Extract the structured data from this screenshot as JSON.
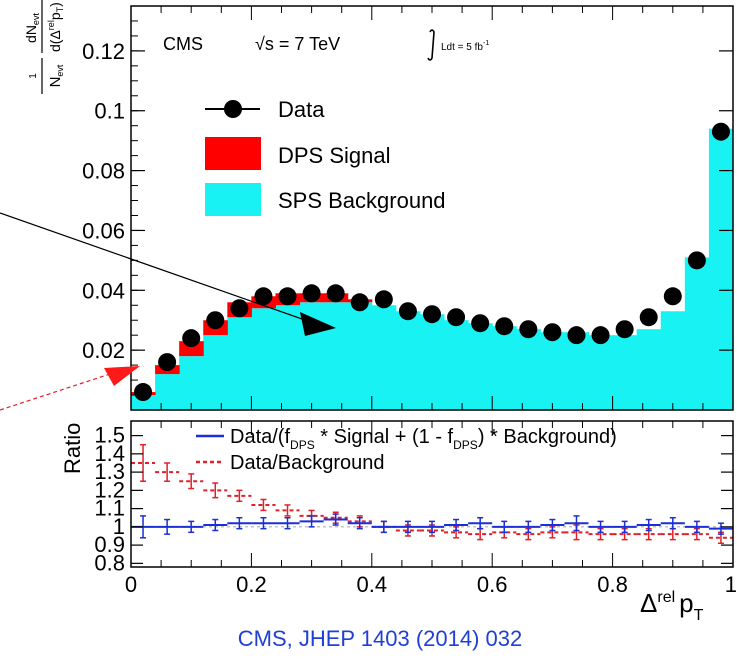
{
  "header": {
    "experiment": "CMS",
    "energy": "√s = 7 TeV",
    "lumi": "Ldt = 5 fb",
    "lumi_sup": "-1"
  },
  "citation": "CMS, JHEP 1403 (2014) 032",
  "colors": {
    "dps_signal": "#ff0000",
    "sps_background": "#19f2f2",
    "data": "#000000",
    "ratio_full": "#1a2fd6",
    "ratio_bkg": "#e0202a",
    "citation": "#1f3fd6"
  },
  "chart_data": [
    {
      "type": "bar",
      "ylabel_parts": {
        "num": "1",
        "den": "N",
        "den_sub": "evt",
        "dnum": "dN",
        "dnum_sub": "evt",
        "dden": "d(Δ",
        "dden_sup": "rel",
        "dden_p": "p",
        "dden_sub": "T",
        "close": ")"
      },
      "xlim": [
        0,
        1
      ],
      "ylim": [
        0,
        0.135
      ],
      "yticks": [
        0.02,
        0.04,
        0.06,
        0.08,
        0.1,
        0.12
      ],
      "ytick_labels": [
        "0.02",
        "0.04",
        "0.06",
        "0.08",
        "0.1",
        "0.12"
      ],
      "bin_width": 0.04,
      "x": [
        0.02,
        0.06,
        0.1,
        0.14,
        0.18,
        0.22,
        0.26,
        0.3,
        0.34,
        0.38,
        0.42,
        0.46,
        0.5,
        0.54,
        0.58,
        0.62,
        0.66,
        0.7,
        0.74,
        0.78,
        0.82,
        0.86,
        0.9,
        0.94,
        0.98
      ],
      "legend": [
        "Data",
        "DPS Signal",
        "SPS Background"
      ],
      "legend_position": "top-left",
      "series": [
        {
          "name": "SPS Background",
          "values": [
            0.005,
            0.012,
            0.018,
            0.025,
            0.031,
            0.034,
            0.035,
            0.036,
            0.036,
            0.036,
            0.035,
            0.033,
            0.032,
            0.03,
            0.029,
            0.028,
            0.027,
            0.026,
            0.026,
            0.025,
            0.025,
            0.027,
            0.033,
            0.051,
            0.094
          ]
        },
        {
          "name": "DPS Signal",
          "values": [
            0.001,
            0.003,
            0.005,
            0.005,
            0.005,
            0.004,
            0.004,
            0.003,
            0.003,
            0.001,
            0.0,
            0.0,
            0.0,
            0.0,
            0.0,
            0.0,
            0.0,
            0.0,
            0.0,
            0.0,
            0.0,
            0.0,
            0.0,
            0.0,
            0.0
          ]
        },
        {
          "name": "Data",
          "values": [
            0.006,
            0.016,
            0.024,
            0.03,
            0.034,
            0.038,
            0.038,
            0.039,
            0.039,
            0.036,
            0.037,
            0.033,
            0.032,
            0.031,
            0.029,
            0.028,
            0.027,
            0.026,
            0.025,
            0.025,
            0.027,
            0.031,
            0.038,
            0.05,
            0.093
          ]
        }
      ]
    },
    {
      "type": "line",
      "ylabel": "Ratio",
      "xlabel_parts": {
        "base": "Δ",
        "sup": "rel",
        "p": "p",
        "sub": "T"
      },
      "xlim": [
        0,
        1
      ],
      "ylim": [
        0.78,
        1.58
      ],
      "yticks": [
        0.8,
        0.9,
        1,
        1.1,
        1.2,
        1.3,
        1.4,
        1.5
      ],
      "ytick_labels": [
        "0.8",
        "0.9",
        "1",
        "1.1",
        "1.2",
        "1.3",
        "1.4",
        "1.5"
      ],
      "xticks": [
        0,
        0.2,
        0.4,
        0.6,
        0.8,
        1
      ],
      "xtick_labels": [
        "0",
        "0.2",
        "0.4",
        "0.6",
        "0.8",
        "1"
      ],
      "x": [
        0.02,
        0.06,
        0.1,
        0.14,
        0.18,
        0.22,
        0.26,
        0.3,
        0.34,
        0.38,
        0.42,
        0.46,
        0.5,
        0.54,
        0.58,
        0.62,
        0.66,
        0.7,
        0.74,
        0.78,
        0.82,
        0.86,
        0.9,
        0.94,
        0.98
      ],
      "legend_parts": {
        "full_a": "Data/(f",
        "full_sub1": "DPS",
        "full_b": " * Signal + (1 - f",
        "full_sub2": "DPS",
        "full_c": ") * Background)",
        "bkg": "Data/Background"
      },
      "series": [
        {
          "name": "Data/(fDPS * Signal + (1 - fDPS) * Background)",
          "values": [
            1.0,
            1.0,
            1.0,
            1.01,
            1.02,
            1.02,
            1.02,
            1.03,
            1.04,
            1.02,
            1.0,
            1.0,
            1.0,
            1.01,
            1.02,
            1.0,
            1.0,
            1.01,
            1.02,
            1.0,
            1.0,
            1.01,
            1.02,
            1.0,
            0.99
          ],
          "err": [
            0.06,
            0.04,
            0.03,
            0.03,
            0.03,
            0.03,
            0.03,
            0.03,
            0.03,
            0.03,
            0.03,
            0.03,
            0.03,
            0.03,
            0.03,
            0.03,
            0.03,
            0.03,
            0.04,
            0.03,
            0.03,
            0.03,
            0.03,
            0.03,
            0.03
          ]
        },
        {
          "name": "Data/Background",
          "values": [
            1.35,
            1.3,
            1.25,
            1.2,
            1.17,
            1.12,
            1.09,
            1.06,
            1.05,
            1.03,
            1.0,
            0.98,
            0.98,
            0.97,
            0.96,
            0.97,
            0.96,
            0.97,
            0.97,
            0.96,
            0.96,
            0.96,
            0.96,
            0.96,
            0.94
          ],
          "err": [
            0.1,
            0.05,
            0.04,
            0.04,
            0.03,
            0.03,
            0.03,
            0.03,
            0.03,
            0.03,
            0.03,
            0.03,
            0.03,
            0.03,
            0.03,
            0.03,
            0.03,
            0.03,
            0.04,
            0.03,
            0.03,
            0.03,
            0.03,
            0.03,
            0.03
          ]
        }
      ]
    }
  ]
}
